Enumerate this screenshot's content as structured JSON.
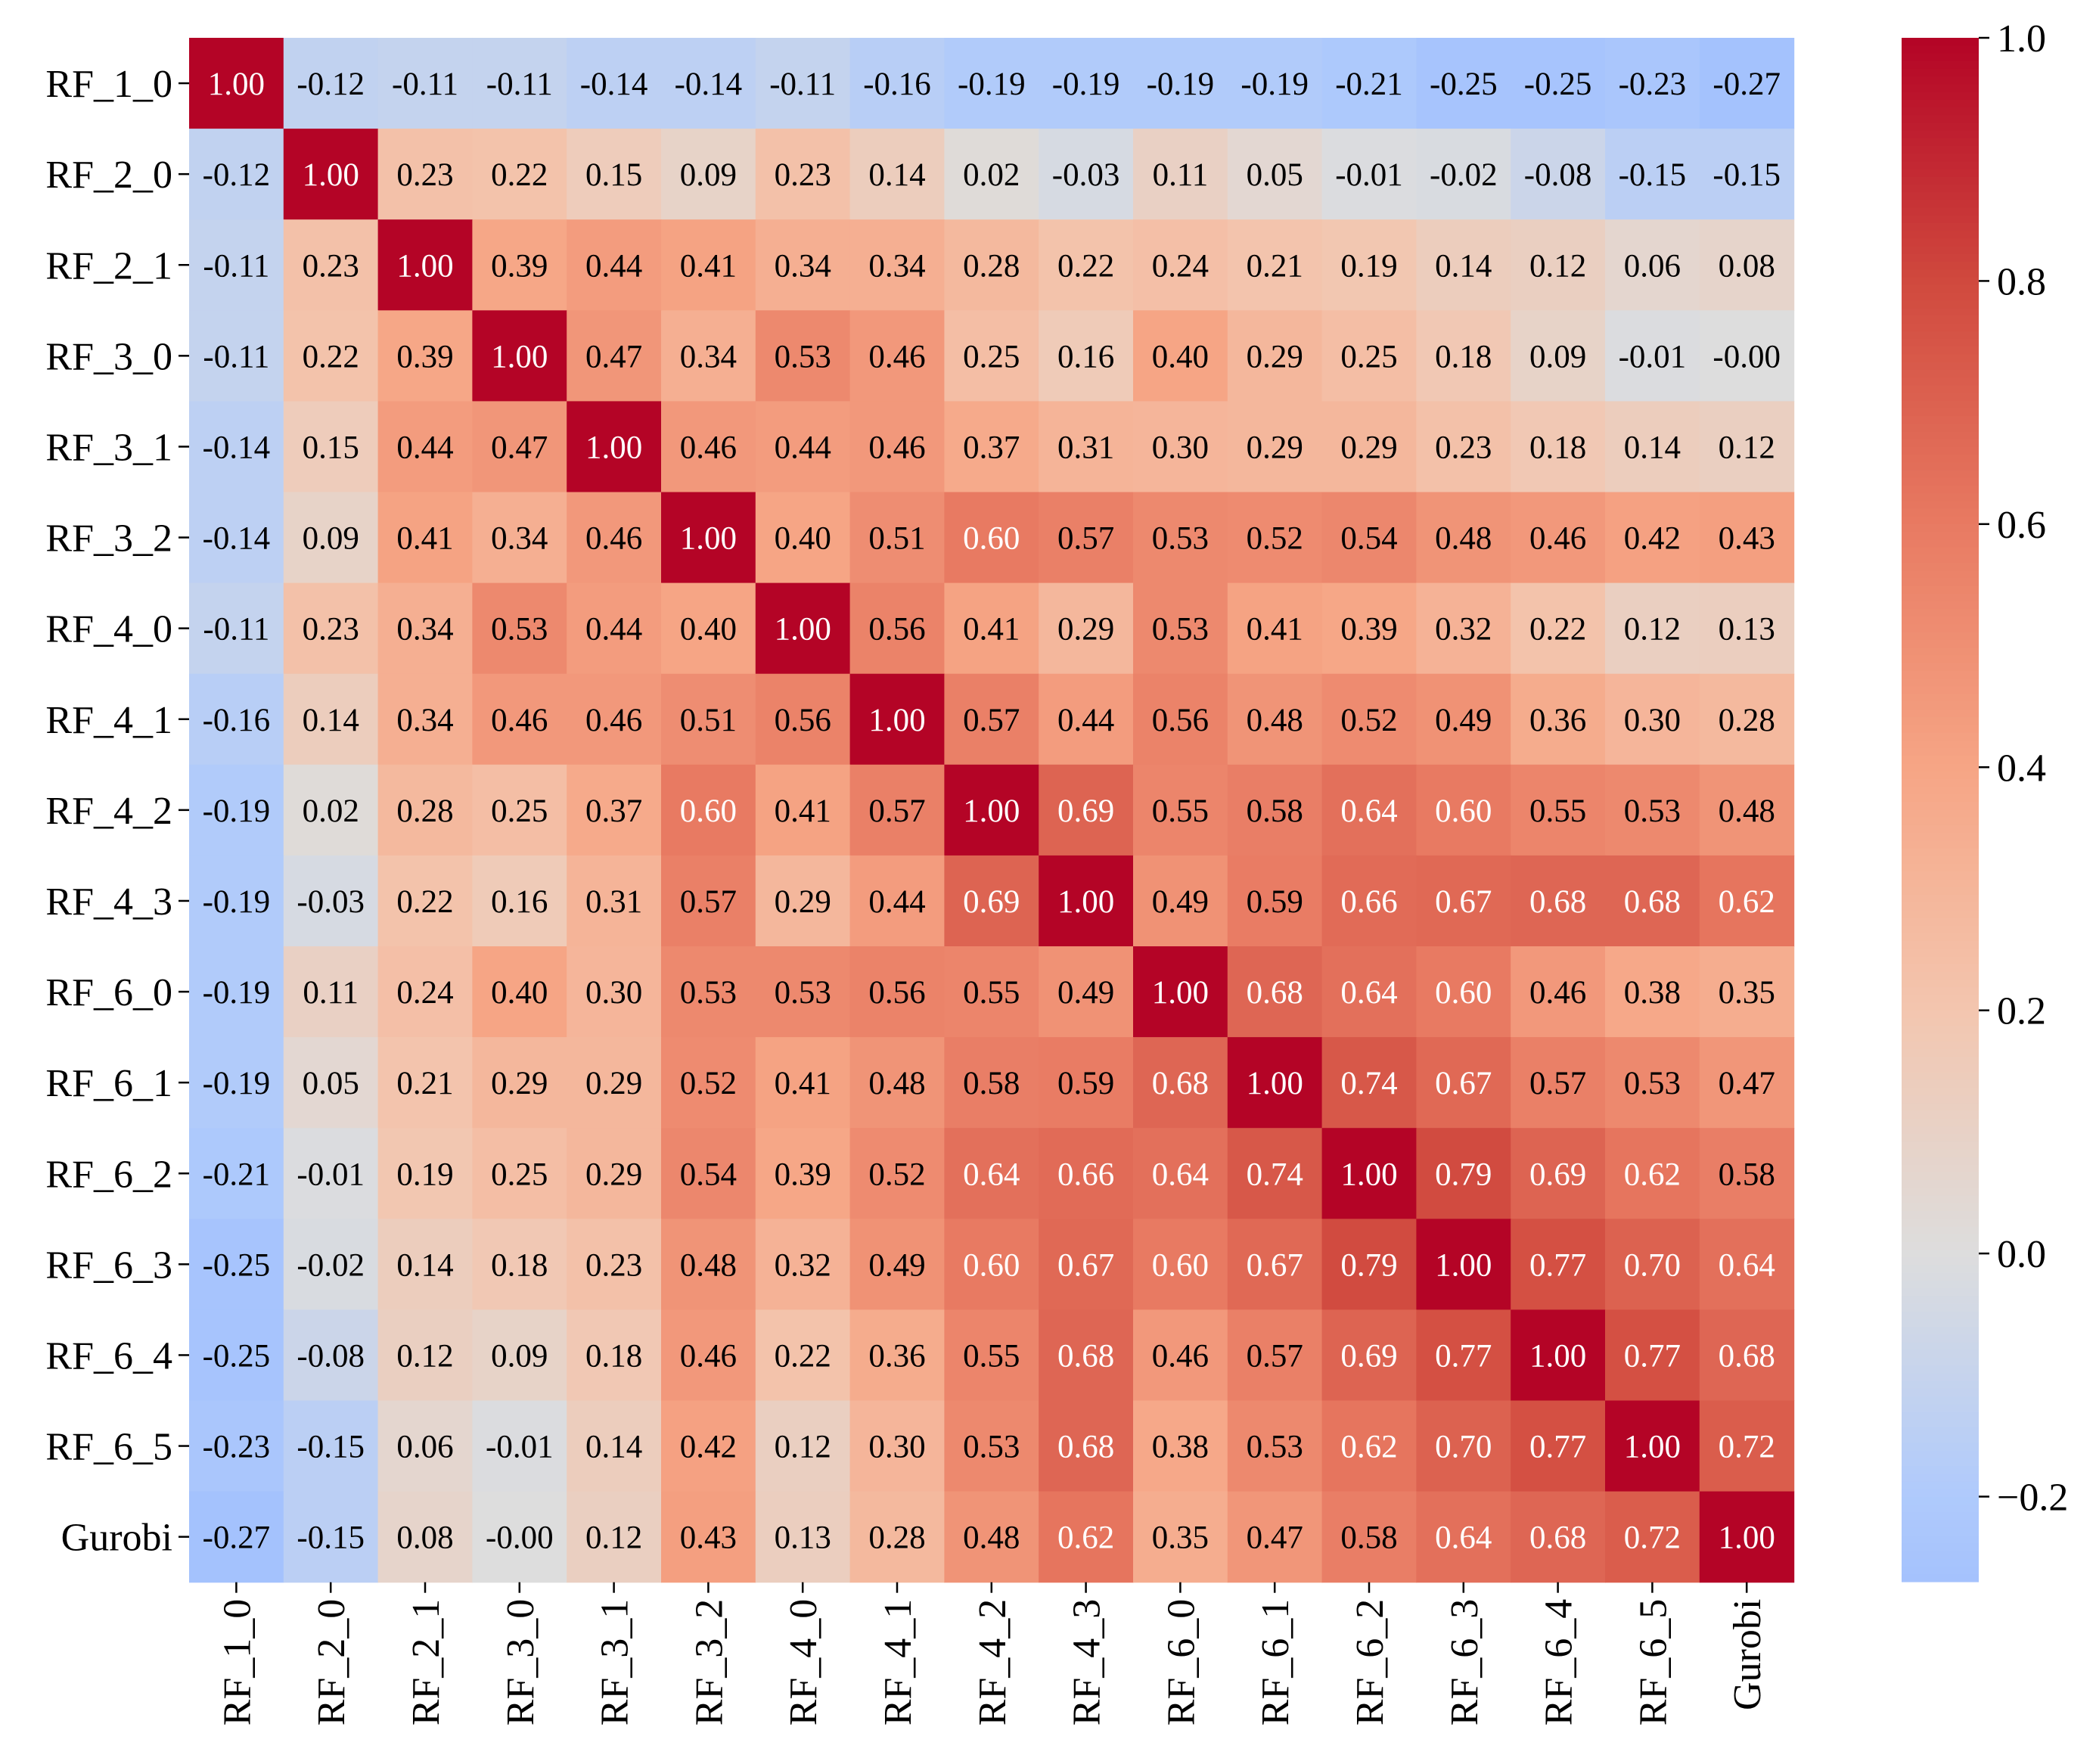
{
  "chart_data": {
    "type": "heatmap",
    "title": "",
    "xlabel": "",
    "ylabel": "",
    "labels": [
      "RF_1_0",
      "RF_2_0",
      "RF_2_1",
      "RF_3_0",
      "RF_3_1",
      "RF_3_2",
      "RF_4_0",
      "RF_4_1",
      "RF_4_2",
      "RF_4_3",
      "RF_6_0",
      "RF_6_1",
      "RF_6_2",
      "RF_6_3",
      "RF_6_4",
      "RF_6_5",
      "Gurobi"
    ],
    "values": [
      [
        1.0,
        -0.12,
        -0.11,
        -0.11,
        -0.14,
        -0.14,
        -0.11,
        -0.16,
        -0.19,
        -0.19,
        -0.19,
        -0.19,
        -0.21,
        -0.25,
        -0.25,
        -0.23,
        -0.27
      ],
      [
        -0.12,
        1.0,
        0.23,
        0.22,
        0.15,
        0.09,
        0.23,
        0.14,
        0.02,
        -0.03,
        0.11,
        0.05,
        -0.01,
        -0.02,
        -0.08,
        -0.15,
        -0.15
      ],
      [
        -0.11,
        0.23,
        1.0,
        0.39,
        0.44,
        0.41,
        0.34,
        0.34,
        0.28,
        0.22,
        0.24,
        0.21,
        0.19,
        0.14,
        0.12,
        0.06,
        0.08
      ],
      [
        -0.11,
        0.22,
        0.39,
        1.0,
        0.47,
        0.34,
        0.53,
        0.46,
        0.25,
        0.16,
        0.4,
        0.29,
        0.25,
        0.18,
        0.09,
        -0.01,
        -0.0
      ],
      [
        -0.14,
        0.15,
        0.44,
        0.47,
        1.0,
        0.46,
        0.44,
        0.46,
        0.37,
        0.31,
        0.3,
        0.29,
        0.29,
        0.23,
        0.18,
        0.14,
        0.12
      ],
      [
        -0.14,
        0.09,
        0.41,
        0.34,
        0.46,
        1.0,
        0.4,
        0.51,
        0.6,
        0.57,
        0.53,
        0.52,
        0.54,
        0.48,
        0.46,
        0.42,
        0.43
      ],
      [
        -0.11,
        0.23,
        0.34,
        0.53,
        0.44,
        0.4,
        1.0,
        0.56,
        0.41,
        0.29,
        0.53,
        0.41,
        0.39,
        0.32,
        0.22,
        0.12,
        0.13
      ],
      [
        -0.16,
        0.14,
        0.34,
        0.46,
        0.46,
        0.51,
        0.56,
        1.0,
        0.57,
        0.44,
        0.56,
        0.48,
        0.52,
        0.49,
        0.36,
        0.3,
        0.28
      ],
      [
        -0.19,
        0.02,
        0.28,
        0.25,
        0.37,
        0.6,
        0.41,
        0.57,
        1.0,
        0.69,
        0.55,
        0.58,
        0.64,
        0.6,
        0.55,
        0.53,
        0.48
      ],
      [
        -0.19,
        -0.03,
        0.22,
        0.16,
        0.31,
        0.57,
        0.29,
        0.44,
        0.69,
        1.0,
        0.49,
        0.59,
        0.66,
        0.67,
        0.68,
        0.68,
        0.62
      ],
      [
        -0.19,
        0.11,
        0.24,
        0.4,
        0.3,
        0.53,
        0.53,
        0.56,
        0.55,
        0.49,
        1.0,
        0.68,
        0.64,
        0.6,
        0.46,
        0.38,
        0.35
      ],
      [
        -0.19,
        0.05,
        0.21,
        0.29,
        0.29,
        0.52,
        0.41,
        0.48,
        0.58,
        0.59,
        0.68,
        1.0,
        0.74,
        0.67,
        0.57,
        0.53,
        0.47
      ],
      [
        -0.21,
        -0.01,
        0.19,
        0.25,
        0.29,
        0.54,
        0.39,
        0.52,
        0.64,
        0.66,
        0.64,
        0.74,
        1.0,
        0.79,
        0.69,
        0.62,
        0.58
      ],
      [
        -0.25,
        -0.02,
        0.14,
        0.18,
        0.23,
        0.48,
        0.32,
        0.49,
        0.6,
        0.67,
        0.6,
        0.67,
        0.79,
        1.0,
        0.77,
        0.7,
        0.64
      ],
      [
        -0.25,
        -0.08,
        0.12,
        0.09,
        0.18,
        0.46,
        0.22,
        0.36,
        0.55,
        0.68,
        0.46,
        0.57,
        0.69,
        0.77,
        1.0,
        0.77,
        0.68
      ],
      [
        -0.23,
        -0.15,
        0.06,
        -0.01,
        0.14,
        0.42,
        0.12,
        0.3,
        0.53,
        0.68,
        0.38,
        0.53,
        0.62,
        0.7,
        0.77,
        1.0,
        0.72
      ],
      [
        -0.27,
        -0.15,
        0.08,
        -0.0,
        0.12,
        0.43,
        0.13,
        0.28,
        0.48,
        0.62,
        0.35,
        0.47,
        0.58,
        0.64,
        0.68,
        0.72,
        1.0
      ]
    ],
    "value_format": "2 decimals",
    "colormap": "coolwarm",
    "colormap_center": 0.0,
    "vmin": -0.27,
    "vmax": 1.0,
    "colorbar_ticks": [
      1.0,
      0.8,
      0.6,
      0.4,
      0.2,
      0.0,
      -0.2
    ],
    "colorbar_tick_labels": [
      "1.0",
      "0.8",
      "0.6",
      "0.4",
      "0.2",
      "0.0",
      "−0.2"
    ],
    "annotation_colors": {
      "light_cells": "#000000",
      "dark_cells": "#ffffff"
    },
    "grid": false,
    "legend": "colorbar-right"
  }
}
